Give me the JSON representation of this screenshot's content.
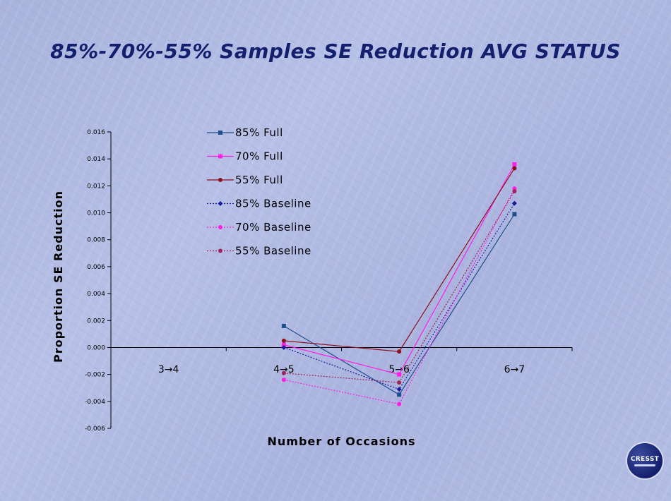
{
  "slide": {
    "title": "85%-70%-55% Samples SE Reduction AVG STATUS",
    "logo_text": "CRESST"
  },
  "chart_data": {
    "type": "line",
    "xlabel": "Number of Occasions",
    "ylabel": "Proportion SE Reduction",
    "categories": [
      "3→4",
      "4→5",
      "5→6",
      "6→7"
    ],
    "ylim": [
      -0.006,
      0.016
    ],
    "yticks": [
      0.016,
      0.014,
      0.012,
      0.01,
      0.008,
      0.006,
      0.004,
      0.002,
      0.0,
      -0.002,
      -0.004,
      -0.006
    ],
    "ytick_labels": [
      "0.016",
      "0.014",
      "0.012",
      "0.010",
      "0.008",
      "0.006",
      "0.004",
      "0.002",
      "0.000",
      "-0.002",
      "-0.004",
      "-0.006"
    ],
    "legend_position": "top-left inside plot",
    "series": [
      {
        "name": "85% Full",
        "values": [
          null,
          0.0016,
          -0.0035,
          0.0099
        ],
        "color": "#1f4e8c",
        "dash": "solid",
        "marker": "square"
      },
      {
        "name": "70% Full",
        "values": [
          null,
          0.0002,
          -0.002,
          0.0136
        ],
        "color": "#ff1ee6",
        "dash": "solid",
        "marker": "square"
      },
      {
        "name": "55% Full",
        "values": [
          null,
          0.0005,
          -0.0003,
          0.0133
        ],
        "color": "#8b1020",
        "dash": "solid",
        "marker": "circle"
      },
      {
        "name": "85% Baseline",
        "values": [
          null,
          0.0,
          -0.0031,
          0.0107
        ],
        "color": "#1a1a9a",
        "dash": "dotted",
        "marker": "diamond"
      },
      {
        "name": "70% Baseline",
        "values": [
          null,
          -0.0024,
          -0.0042,
          0.0118
        ],
        "color": "#ff1ee6",
        "dash": "dotted",
        "marker": "circle"
      },
      {
        "name": "55% Baseline",
        "values": [
          null,
          -0.0019,
          -0.0026,
          0.0116
        ],
        "color": "#a0245a",
        "dash": "dotted",
        "marker": "circle"
      }
    ]
  }
}
